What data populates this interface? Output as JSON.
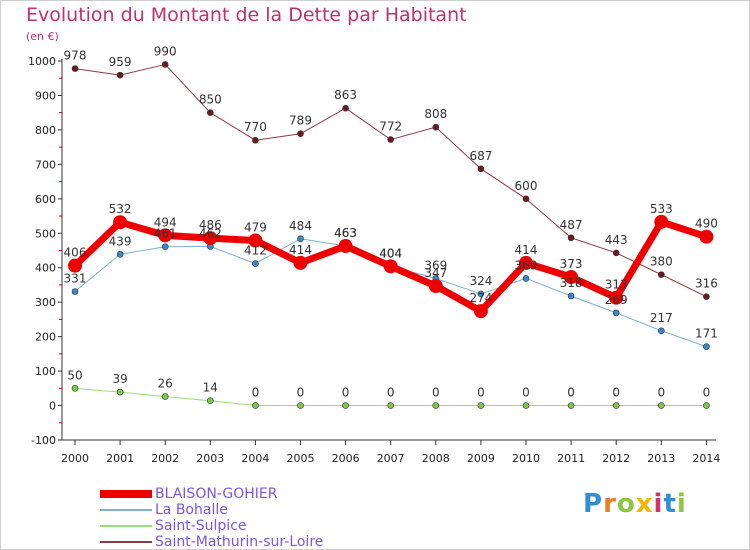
{
  "title": "Evolution du Montant de la Dette par Habitant",
  "subtitle": "(en €)",
  "logo": "Proxiti",
  "colors": {
    "title": "#c0306a",
    "legend_text": "#7a57e0",
    "axis": "#333333",
    "tick_red": "#cc0000"
  },
  "chart_data": {
    "type": "line",
    "title": "Evolution du Montant de la Dette par Habitant",
    "subtitle": "(en €)",
    "ylim": [
      -100,
      1000
    ],
    "yticks": [
      -100,
      0,
      100,
      200,
      300,
      400,
      500,
      600,
      700,
      800,
      900,
      1000
    ],
    "x": [
      "2000",
      "2001",
      "2002",
      "2003",
      "2004",
      "2005",
      "2006",
      "2007",
      "2008",
      "2009",
      "2010",
      "2011",
      "2012",
      "2013",
      "2014"
    ],
    "grid": false,
    "legend_position": "bottom-left",
    "series": [
      {
        "name": "Saint-Mathurin-sur-Loire",
        "color": "#8c3a44",
        "marker": "#6b1a22",
        "width": 1,
        "values": [
          978,
          959,
          990,
          850,
          770,
          789,
          863,
          772,
          808,
          687,
          600,
          487,
          443,
          380,
          316
        ],
        "labels": [
          "978",
          "959",
          "990",
          "850",
          "770",
          "789",
          "863",
          "772",
          "808",
          "687",
          "600",
          "487",
          "443",
          "380",
          "316"
        ]
      },
      {
        "name": "Saint-Sulpice",
        "color": "#99dd77",
        "marker": "#77cc44",
        "width": 1,
        "values": [
          50,
          39,
          26,
          14,
          0,
          0,
          0,
          0,
          0,
          0,
          0,
          0,
          0,
          0,
          0
        ],
        "labels": [
          "50",
          "39",
          "26",
          "14",
          "0",
          "0",
          "0",
          "0",
          "0",
          "0",
          "0",
          "0",
          "0",
          "0",
          "0"
        ]
      },
      {
        "name": "La Bohalle",
        "color": "#7fb0d8",
        "marker": "#3a88cc",
        "width": 1,
        "values": [
          331,
          439,
          461,
          462,
          412,
          484,
          463,
          404,
          369,
          324,
          369,
          318,
          269,
          217,
          171
        ],
        "labels": [
          "331",
          "439",
          "461",
          "462",
          "412",
          "484",
          "463",
          "404",
          "369",
          "324",
          "369",
          "318",
          "269",
          "217",
          "171"
        ]
      },
      {
        "name": "BLAISON-GOHIER",
        "color": "#ee0000",
        "marker": "#ee0000",
        "width": 7,
        "values": [
          406,
          532,
          494,
          486,
          479,
          414,
          463,
          404,
          347,
          274,
          414,
          373,
          313,
          533,
          490
        ],
        "labels": [
          "406",
          "532",
          "494",
          "486",
          "479",
          "414",
          "463",
          "404",
          "347",
          "274",
          "414",
          "373",
          "313",
          "533",
          "490"
        ]
      }
    ],
    "legend": [
      {
        "name": "BLAISON-GOHIER",
        "color": "#ee0000",
        "width": 7
      },
      {
        "name": "La Bohalle",
        "color": "#7fb0d8",
        "width": 1
      },
      {
        "name": "Saint-Sulpice",
        "color": "#99dd77",
        "width": 1
      },
      {
        "name": "Saint-Mathurin-sur-Loire",
        "color": "#8c3a44",
        "width": 1
      }
    ]
  }
}
